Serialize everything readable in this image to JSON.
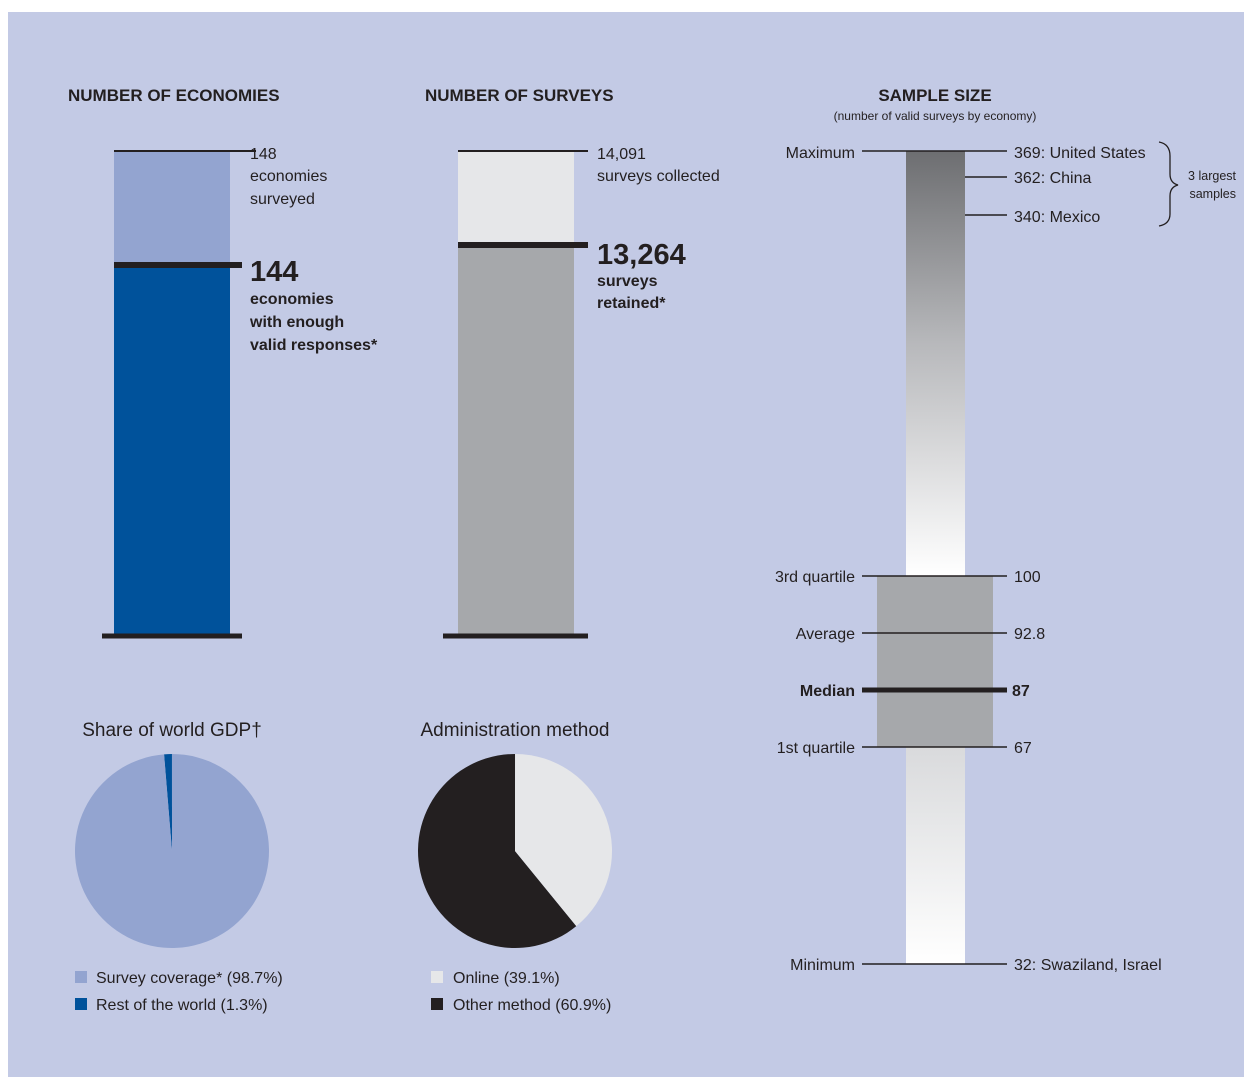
{
  "colors": {
    "background": "#c3cae5",
    "economies_surveyed": "#93a4d0",
    "economies_valid": "#00529b",
    "surveys_collected": "#e6e7e9",
    "surveys_retained": "#a6a8ab",
    "dark": "#231f20",
    "iqr_box": "#a6a8ab"
  },
  "economies": {
    "title": "NUMBER OF ECONOMIES",
    "surveyed": {
      "value": 148,
      "number": "148",
      "line1": "economies",
      "line2": "surveyed"
    },
    "valid": {
      "value": 144,
      "number": "144",
      "line1": "economies",
      "line2": "with enough",
      "line3": "valid responses*"
    }
  },
  "surveys": {
    "title": "NUMBER OF SURVEYS",
    "collected": {
      "value": 14091,
      "number": "14,091",
      "line1": "surveys collected"
    },
    "retained": {
      "value": 13264,
      "number": "13,264",
      "line1": "surveys",
      "line2": "retained*"
    }
  },
  "sample_size": {
    "title": "SAMPLE SIZE",
    "subtitle": "(number of valid surveys by economy)",
    "stats": {
      "maximum": {
        "label": "Maximum",
        "value": 369,
        "text": "369: United States"
      },
      "third_quartile": {
        "label": "3rd quartile",
        "value": 100,
        "text": "100"
      },
      "average": {
        "label": "Average",
        "value": 92.8,
        "text": "92.8"
      },
      "median": {
        "label": "Median",
        "value": 87,
        "text": "87"
      },
      "first_quartile": {
        "label": "1st quartile",
        "value": 67,
        "text": "67"
      },
      "minimum": {
        "label": "Minimum",
        "value": 32,
        "text": "32: Swaziland, Israel"
      }
    },
    "largest": [
      {
        "value": 362,
        "text": "362: China"
      },
      {
        "value": 340,
        "text": "340: Mexico"
      }
    ],
    "bracket_line1": "3 largest",
    "bracket_line2": "samples"
  },
  "chart_data": [
    {
      "type": "bar",
      "title": "NUMBER OF ECONOMIES",
      "categories": [
        "economies surveyed",
        "economies with enough valid responses*"
      ],
      "values": [
        148,
        144
      ]
    },
    {
      "type": "bar",
      "title": "NUMBER OF SURVEYS",
      "categories": [
        "surveys collected",
        "surveys retained*"
      ],
      "values": [
        14091,
        13264
      ]
    },
    {
      "type": "pie",
      "title": "Share of world GDP†",
      "slices": [
        {
          "name": "Survey coverage*",
          "value": 98.7,
          "label": "Survey coverage* (98.7%)",
          "color": "#93a4d0"
        },
        {
          "name": "Rest of the world",
          "value": 1.3,
          "label": "Rest of the world (1.3%)",
          "color": "#00529b"
        }
      ]
    },
    {
      "type": "pie",
      "title": "Administration method",
      "slices": [
        {
          "name": "Online",
          "value": 39.1,
          "label": "Online (39.1%)",
          "color": "#e6e7e9"
        },
        {
          "name": "Other method",
          "value": 60.9,
          "label": "Other method (60.9%)",
          "color": "#231f20"
        }
      ]
    }
  ]
}
